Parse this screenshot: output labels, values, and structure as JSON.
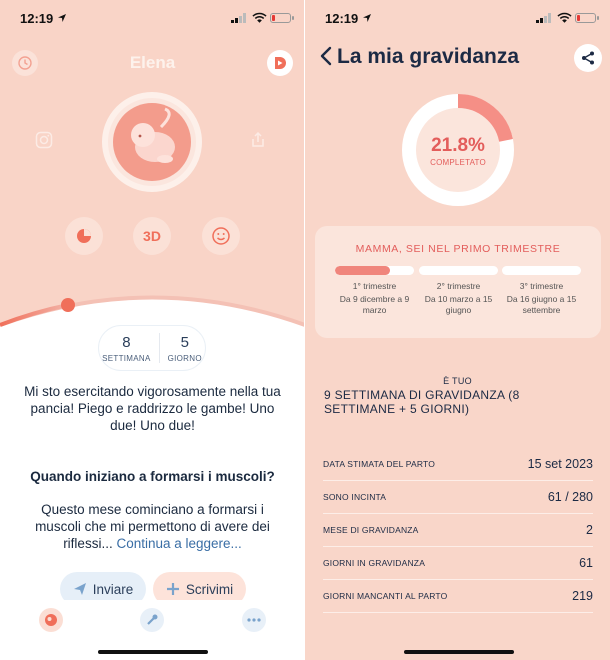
{
  "left": {
    "status": {
      "time": "12:19"
    },
    "header": {
      "name": "Elena"
    },
    "buttons": {
      "three_d": "3D"
    },
    "week": {
      "weeks_value": "8",
      "weeks_label": "SETTIMANA",
      "days_value": "5",
      "days_label": "GIORNO"
    },
    "message": "Mi sto esercitando vigorosamente nella tua pancia! Piego e raddrizzo le gambe! Uno due! Uno due!",
    "question": {
      "title": "Quando iniziano a formarsi i muscoli?",
      "body": "Questo mese cominciano a formarsi i muscoli che mi permettono di avere dei riflessi...",
      "link": "Continua a leggere..."
    },
    "actions": {
      "send": "Inviare",
      "write": "Scrivimi"
    },
    "colors": {
      "accent": "#f06f5a",
      "background": "#f9d4c7"
    }
  },
  "right": {
    "status": {
      "time": "12:19"
    },
    "title": "La mia gravidanza",
    "progress": {
      "value": 0.218,
      "percent_label": "21.8%",
      "label": "COMPLETATO"
    },
    "trimesters": {
      "title": "MAMMA, SEI NEL PRIMO TRIMESTRE",
      "items": [
        {
          "name": "1° trimestre",
          "range": "Da 9 dicembre a 9 marzo",
          "fill": 0.7
        },
        {
          "name": "2° trimestre",
          "range": "Da 10 marzo a 15 giugno",
          "fill": 0
        },
        {
          "name": "3° trimestre",
          "range": "Da 16 giugno a 15 settembre",
          "fill": 0
        }
      ]
    },
    "tuo": {
      "pre": "È TUO",
      "main": "9 SETTIMANA DI GRAVIDANZA (8 SETTIMANE + 5 GIORNI)"
    },
    "stats": [
      {
        "label": "DATA STIMATA DEL PARTO",
        "value": "15 set 2023"
      },
      {
        "label": "SONO INCINTA",
        "value": "61 / 280"
      },
      {
        "label": "MESE DI GRAVIDANZA",
        "value": "2"
      },
      {
        "label": "GIORNI IN GRAVIDANZA",
        "value": "61"
      },
      {
        "label": "GIORNI MANCANTI AL PARTO",
        "value": "219"
      }
    ],
    "colors": {
      "accent": "#e35d5b",
      "background": "#f9d6c9"
    }
  }
}
